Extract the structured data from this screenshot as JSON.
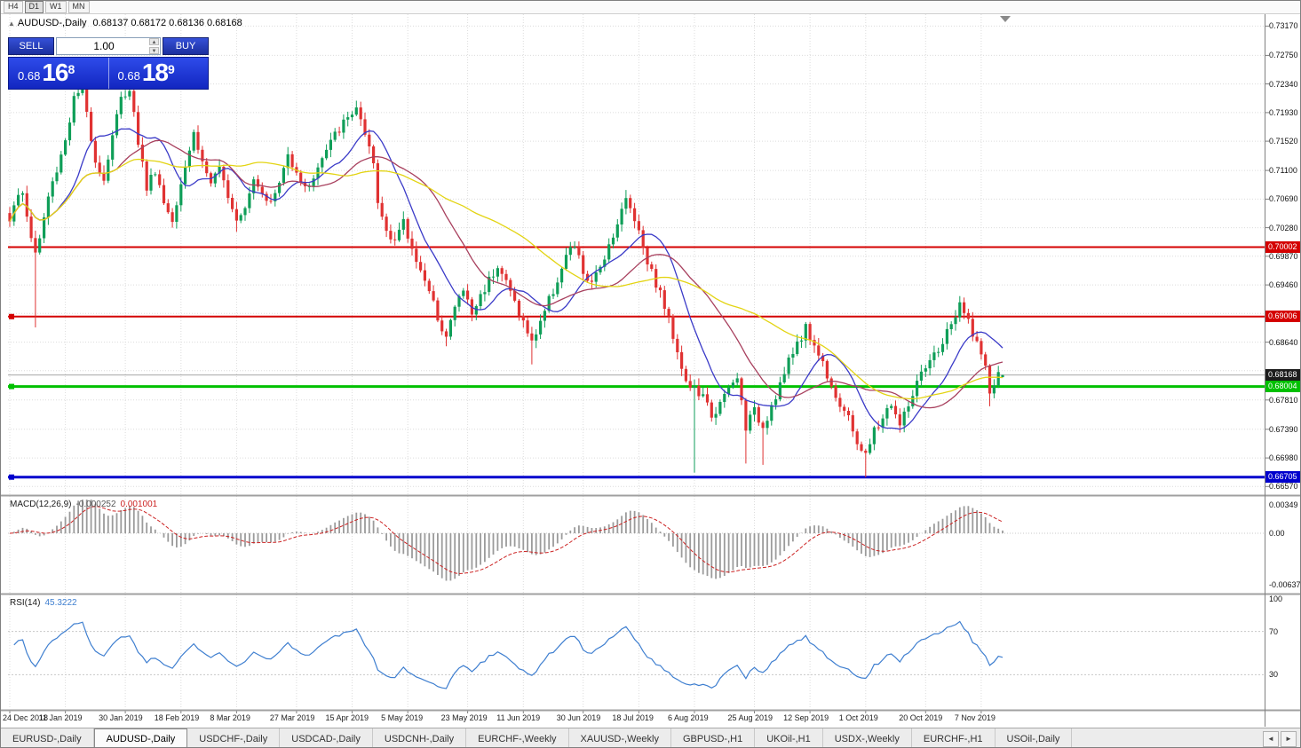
{
  "toolbar": {
    "timeframes": [
      "H4",
      "D1",
      "W1",
      "MN"
    ],
    "active_index": 1
  },
  "chart": {
    "collapse_icon": "▲",
    "symbol_label": "AUDUSD-,Daily",
    "ohlc_text": "0.68137 0.68172 0.68136 0.68168"
  },
  "trade_panel": {
    "sell_label": "SELL",
    "buy_label": "BUY",
    "volume": "1.00",
    "up_icon": "▲",
    "down_icon": "▼",
    "sell_price": {
      "prefix": "0.68",
      "big": "16",
      "sup": "8"
    },
    "buy_price": {
      "prefix": "0.68",
      "big": "18",
      "sup": "9"
    }
  },
  "chart_data": {
    "type": "candlestick",
    "symbol": "AUDUSD-",
    "timeframe": "Daily",
    "y_ticks": [
      "0.73170",
      "0.72750",
      "0.72340",
      "0.71930",
      "0.71520",
      "0.71100",
      "0.70690",
      "0.70280",
      "0.69870",
      "0.69460",
      "0.69050",
      "0.68640",
      "0.68230",
      "0.67810",
      "0.67390",
      "0.66980",
      "0.66570"
    ],
    "x_labels": [
      "24 Dec 2018",
      "11 Jan 2019",
      "30 Jan 2019",
      "18 Feb 2019",
      "8 Mar 2019",
      "27 Mar 2019",
      "15 Apr 2019",
      "5 May 2019",
      "23 May 2019",
      "11 Jun 2019",
      "30 Jun 2019",
      "18 Jul 2019",
      "6 Aug 2019",
      "25 Aug 2019",
      "12 Sep 2019",
      "1 Oct 2019",
      "20 Oct 2019",
      "7 Nov 2019"
    ],
    "x_label_last_index": 227,
    "lines": [
      {
        "price": 0.70002,
        "label": "0.70002",
        "color": "#d40000",
        "width": 2,
        "handle": false
      },
      {
        "price": 0.69006,
        "label": "0.69006",
        "color": "#d40000",
        "width": 2,
        "handle": true
      },
      {
        "price": 0.68004,
        "label": "0.68004",
        "color": "#00c000",
        "width": 3,
        "handle": true
      },
      {
        "price": 0.66705,
        "label": "0.66705",
        "color": "#0000cd",
        "width": 3,
        "handle": true
      }
    ],
    "current_price": {
      "value": 0.68168,
      "label": "0.68168",
      "line_color": "#a6a6a6",
      "badge_bg": "#1c1c1c"
    },
    "moving_averages": [
      {
        "period": 12,
        "color": "#3b3bc8"
      },
      {
        "period": 26,
        "color": "#a8405e"
      },
      {
        "period": 50,
        "color": "#e3d413"
      }
    ],
    "macd": {
      "label": "MACD(12,26,9)",
      "value_main": "-0.000252",
      "value_signal": "0.001001",
      "fast": 12,
      "slow": 26,
      "signal": 9,
      "axis_values": [
        0.00349,
        0,
        -0.00637
      ],
      "axis_labels": [
        "0.00349",
        "0.00",
        "-0.00637"
      ],
      "hist_color": "#9b9b9b",
      "signal_color": "#cc2222"
    },
    "rsi": {
      "label": "RSI(14)",
      "value": "45.3222",
      "period": 14,
      "color": "#3f7fd0",
      "levels": [
        70,
        30
      ],
      "axis_labels": [
        {
          "v": 100,
          "t": "100"
        },
        {
          "v": 70,
          "t": "70"
        },
        {
          "v": 30,
          "t": "30"
        }
      ]
    },
    "candles": {
      "count": 233,
      "up_color": "#0f9e58",
      "down_color": "#e03232",
      "last": [
        0.68137,
        0.68172,
        0.68136,
        0.68168
      ],
      "anchors": [
        [
          0,
          0.7042
        ],
        [
          1,
          0.7065
        ],
        [
          3,
          0.7075
        ],
        [
          5,
          0.7015
        ],
        [
          6,
          0.6992
        ],
        [
          7,
          0.7012
        ],
        [
          9,
          0.7072
        ],
        [
          11,
          0.7112
        ],
        [
          13,
          0.7155
        ],
        [
          15,
          0.7212
        ],
        [
          17,
          0.7228
        ],
        [
          18,
          0.7192
        ],
        [
          20,
          0.7126
        ],
        [
          22,
          0.7096
        ],
        [
          24,
          0.7162
        ],
        [
          26,
          0.7212
        ],
        [
          28,
          0.723
        ],
        [
          30,
          0.7152
        ],
        [
          32,
          0.7086
        ],
        [
          34,
          0.7112
        ],
        [
          36,
          0.7064
        ],
        [
          38,
          0.704
        ],
        [
          40,
          0.7096
        ],
        [
          43,
          0.7164
        ],
        [
          45,
          0.7122
        ],
        [
          47,
          0.7092
        ],
        [
          49,
          0.7108
        ],
        [
          51,
          0.7078
        ],
        [
          53,
          0.7042
        ],
        [
          55,
          0.7062
        ],
        [
          57,
          0.71
        ],
        [
          59,
          0.7082
        ],
        [
          61,
          0.7062
        ],
        [
          63,
          0.7092
        ],
        [
          65,
          0.7132
        ],
        [
          67,
          0.7112
        ],
        [
          69,
          0.7082
        ],
        [
          71,
          0.7102
        ],
        [
          73,
          0.7126
        ],
        [
          75,
          0.715
        ],
        [
          77,
          0.717
        ],
        [
          79,
          0.7184
        ],
        [
          81,
          0.7202
        ],
        [
          83,
          0.7156
        ],
        [
          85,
          0.7118
        ],
        [
          86,
          0.7062
        ],
        [
          88,
          0.7026
        ],
        [
          90,
          0.7012
        ],
        [
          92,
          0.7034
        ],
        [
          94,
          0.6996
        ],
        [
          96,
          0.6972
        ],
        [
          98,
          0.6932
        ],
        [
          100,
          0.6902
        ],
        [
          102,
          0.6872
        ],
        [
          104,
          0.6914
        ],
        [
          106,
          0.694
        ],
        [
          108,
          0.6904
        ],
        [
          110,
          0.693
        ],
        [
          112,
          0.6954
        ],
        [
          114,
          0.6976
        ],
        [
          116,
          0.695
        ],
        [
          118,
          0.6922
        ],
        [
          120,
          0.6892
        ],
        [
          122,
          0.6862
        ],
        [
          124,
          0.6896
        ],
        [
          126,
          0.6924
        ],
        [
          128,
          0.6954
        ],
        [
          130,
          0.6986
        ],
        [
          132,
          0.7002
        ],
        [
          134,
          0.6964
        ],
        [
          136,
          0.6944
        ],
        [
          138,
          0.6974
        ],
        [
          140,
          0.7004
        ],
        [
          142,
          0.7036
        ],
        [
          144,
          0.7068
        ],
        [
          146,
          0.7044
        ],
        [
          148,
          0.7002
        ],
        [
          150,
          0.6964
        ],
        [
          152,
          0.6934
        ],
        [
          154,
          0.6896
        ],
        [
          156,
          0.6854
        ],
        [
          158,
          0.6806
        ],
        [
          160,
          0.6796
        ],
        [
          162,
          0.6784
        ],
        [
          164,
          0.676
        ],
        [
          166,
          0.6774
        ],
        [
          168,
          0.6796
        ],
        [
          170,
          0.6812
        ],
        [
          172,
          0.6744
        ],
        [
          174,
          0.6764
        ],
        [
          176,
          0.6744
        ],
        [
          178,
          0.6774
        ],
        [
          180,
          0.6804
        ],
        [
          182,
          0.6834
        ],
        [
          184,
          0.6864
        ],
        [
          186,
          0.6884
        ],
        [
          188,
          0.686
        ],
        [
          190,
          0.6834
        ],
        [
          192,
          0.6804
        ],
        [
          194,
          0.6774
        ],
        [
          196,
          0.6752
        ],
        [
          198,
          0.6722
        ],
        [
          200,
          0.67
        ],
        [
          202,
          0.6736
        ],
        [
          204,
          0.6756
        ],
        [
          206,
          0.6776
        ],
        [
          208,
          0.6744
        ],
        [
          210,
          0.6774
        ],
        [
          212,
          0.6804
        ],
        [
          214,
          0.6824
        ],
        [
          216,
          0.6844
        ],
        [
          218,
          0.6864
        ],
        [
          220,
          0.689
        ],
        [
          222,
          0.6914
        ],
        [
          224,
          0.6894
        ],
        [
          226,
          0.6864
        ],
        [
          228,
          0.6824
        ],
        [
          229,
          0.6792
        ],
        [
          230,
          0.6804
        ],
        [
          231,
          0.6814
        ],
        [
          232,
          0.68168
        ]
      ],
      "wick_lows": [
        [
          6,
          0.6885
        ],
        [
          38,
          0.7028
        ],
        [
          53,
          0.7022
        ],
        [
          102,
          0.6858
        ],
        [
          122,
          0.6832
        ],
        [
          160,
          0.6677
        ],
        [
          172,
          0.669
        ],
        [
          176,
          0.6688
        ],
        [
          200,
          0.667
        ],
        [
          229,
          0.6772
        ]
      ],
      "wick_highs": [
        [
          16,
          0.7235
        ],
        [
          28,
          0.724
        ],
        [
          81,
          0.721
        ],
        [
          144,
          0.7082
        ],
        [
          222,
          0.693
        ]
      ]
    }
  },
  "tabs": {
    "items": [
      "EURUSD-,Daily",
      "AUDUSD-,Daily",
      "USDCHF-,Daily",
      "USDCAD-,Daily",
      "USDCNH-,Daily",
      "EURCHF-,Weekly",
      "XAUUSD-,Weekly",
      "GBPUSD-,H1",
      "UKOil-,H1",
      "USDX-,Weekly",
      "EURCHF-,H1",
      "USOil-,Daily"
    ],
    "active_index": 1,
    "scroll_left_icon": "◄",
    "scroll_right_icon": "►"
  }
}
